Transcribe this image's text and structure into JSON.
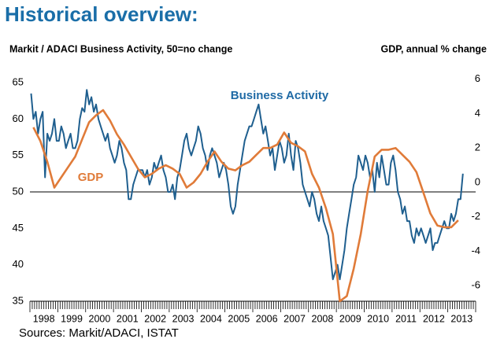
{
  "chart_data": {
    "type": "line",
    "title": "Historical overview:",
    "y_label": "Markit / ADACI  Business Activity, 50=no change",
    "y2_label": "GDP, annual % change",
    "source": "Sources: Markit/ADACI, ISTAT",
    "categories": [
      "1998",
      "1999",
      "2000",
      "2001",
      "2002",
      "2003",
      "2004",
      "2005",
      "2006",
      "2007",
      "2008",
      "2009",
      "2010",
      "2011",
      "2012",
      "2013"
    ],
    "ylim": [
      35,
      65
    ],
    "yticks": [
      35,
      40,
      45,
      50,
      55,
      60,
      65
    ],
    "y2lim": [
      -6.9,
      5.8
    ],
    "y2ticks": [
      -6,
      -4,
      -2,
      0,
      2,
      4,
      6
    ],
    "reference_line": 50,
    "series": [
      {
        "name": "Business Activity",
        "color": "#1f5f8f",
        "label_color": "#1f6aa5",
        "values": [
          [
            63.5,
            60,
            61,
            58,
            60,
            61,
            52,
            58,
            57,
            58,
            60,
            57
          ],
          [
            57,
            59,
            58,
            56,
            57,
            58,
            56,
            56,
            57,
            60,
            61.5,
            61
          ],
          [
            64,
            62,
            63,
            61,
            62,
            60,
            59,
            58,
            57,
            58,
            56,
            55
          ],
          [
            54,
            55,
            57,
            56,
            54,
            53,
            49,
            49,
            51,
            52,
            53,
            53
          ],
          [
            53,
            52,
            53,
            51,
            52,
            54,
            53,
            54,
            55,
            53,
            52,
            50
          ],
          [
            50,
            51,
            49,
            52,
            53,
            55,
            57,
            58,
            56,
            55,
            56,
            57
          ],
          [
            59,
            58,
            56,
            55,
            53,
            55,
            56,
            55,
            54,
            52,
            53,
            54
          ],
          [
            53,
            51,
            48,
            47,
            48,
            51,
            53,
            55,
            57,
            58,
            59,
            59
          ],
          [
            60,
            61,
            62,
            60,
            58,
            59,
            57,
            55,
            56,
            53,
            55,
            57
          ],
          [
            56,
            54,
            55,
            58,
            55,
            53,
            57,
            56,
            54,
            51,
            50,
            49
          ],
          [
            48,
            50,
            49,
            47,
            46,
            48,
            46,
            45,
            44,
            41,
            38,
            39
          ],
          [
            40,
            38,
            40,
            42,
            45,
            47,
            49,
            51,
            52,
            55,
            54,
            53
          ],
          [
            55,
            54,
            52,
            53,
            50,
            54,
            52,
            55,
            53,
            51,
            51,
            54
          ],
          [
            55,
            53,
            50,
            49,
            47,
            48,
            46,
            46,
            44,
            43,
            45,
            44
          ],
          [
            45,
            44,
            43,
            44,
            45,
            42,
            43,
            43,
            44,
            45,
            46,
            45
          ],
          [
            45,
            47,
            46,
            47,
            49,
            49,
            52.5,
            null,
            null,
            null,
            null,
            null
          ]
        ]
      },
      {
        "name": "GDP",
        "color": "#e07b39",
        "label_color": "#e07b39",
        "axis": "y2",
        "values": [
          [
            3.2,
            2.4,
            1.2,
            -0.3
          ],
          [
            0.3,
            0.9,
            1.5,
            2.5
          ],
          [
            3.5,
            3.9,
            4.2,
            3.6
          ],
          [
            2.8,
            2.2,
            1.5,
            0.8
          ],
          [
            0.3,
            0.5,
            0.8,
            1.0
          ],
          [
            0.8,
            0.5,
            -0.3,
            0.0
          ],
          [
            0.5,
            1.2,
            1.8,
            1.2
          ],
          [
            0.8,
            0.7,
            1.0,
            1.2
          ],
          [
            1.6,
            2.0,
            2.0,
            2.2
          ],
          [
            2.9,
            2.3,
            2.1,
            1.8
          ],
          [
            0.5,
            -0.3,
            -1.5,
            -3.0
          ],
          [
            -6.9,
            -6.6,
            -5.0,
            -3.0
          ],
          [
            -0.5,
            1.5,
            1.9,
            1.9
          ],
          [
            2.0,
            1.6,
            1.2,
            0.6
          ],
          [
            -0.6,
            -1.8,
            -2.5,
            -2.6
          ],
          [
            -2.6,
            -2.2,
            null,
            null
          ]
        ]
      }
    ]
  }
}
